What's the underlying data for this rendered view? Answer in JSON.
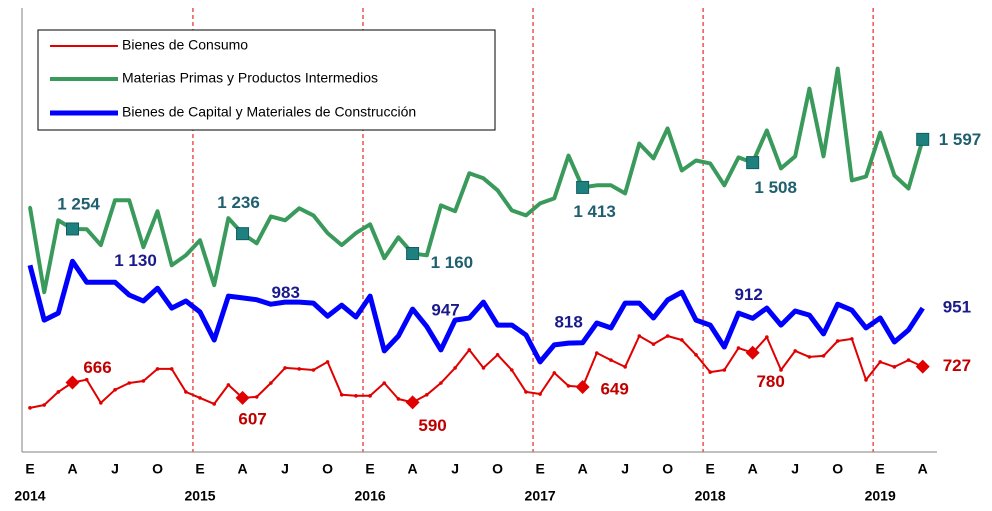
{
  "chart_data": {
    "type": "line",
    "categories": [
      "E",
      null,
      null,
      "A",
      null,
      null,
      "J",
      null,
      null,
      "O",
      null,
      null,
      "E",
      null,
      null,
      "A",
      null,
      null,
      "J",
      null,
      null,
      "O",
      null,
      null,
      "E",
      null,
      null,
      "A",
      null,
      null,
      "J",
      null,
      null,
      "O",
      null,
      null,
      "E",
      null,
      null,
      "A",
      null,
      null,
      "J",
      null,
      null,
      "O",
      null,
      null,
      "E",
      null,
      null,
      "A",
      null,
      null,
      "J",
      null,
      null,
      "O",
      null,
      null,
      "E",
      null,
      null,
      "A"
    ],
    "years": [
      "2014",
      "2015",
      "2016",
      "2017",
      "2018",
      "2019"
    ],
    "ylim": [
      400,
      2100
    ],
    "legend": "upper left",
    "series": [
      {
        "name": "Bienes de Consumo",
        "color": "#e00000",
        "label_color": "#c00000",
        "values": [
          569,
          580,
          630,
          666,
          677,
          588,
          638,
          664,
          672,
          718,
          718,
          630,
          607,
          584,
          657,
          607,
          611,
          664,
          722,
          718,
          714,
          745,
          619,
          615,
          615,
          664,
          603,
          590,
          619,
          664,
          722,
          791,
          722,
          772,
          714,
          630,
          622,
          703,
          653,
          649,
          779,
          752,
          726,
          844,
          813,
          844,
          829,
          772,
          706,
          714,
          798,
          780,
          840,
          714,
          787,
          764,
          768,
          825,
          833,
          676,
          745,
          726,
          752,
          727
        ],
        "value_labels": [
          null,
          null,
          null,
          "666",
          null,
          null,
          null,
          null,
          null,
          null,
          null,
          null,
          null,
          null,
          null,
          "607",
          null,
          null,
          null,
          null,
          null,
          null,
          null,
          null,
          null,
          null,
          null,
          "590",
          null,
          null,
          null,
          null,
          null,
          null,
          null,
          null,
          null,
          null,
          null,
          "649",
          null,
          null,
          null,
          null,
          null,
          null,
          null,
          null,
          null,
          null,
          null,
          "780",
          null,
          null,
          null,
          null,
          null,
          null,
          null,
          null,
          null,
          null,
          null,
          "727"
        ]
      },
      {
        "name": "Materias Primas y Productos Intermedios",
        "color": "#3a9a5b",
        "label_color": "#1f5f6f",
        "values": [
          1337,
          1012,
          1287,
          1254,
          1253,
          1192,
          1364,
          1364,
          1184,
          1322,
          1115,
          1153,
          1211,
          1039,
          1295,
          1236,
          1199,
          1302,
          1287,
          1333,
          1306,
          1238,
          1192,
          1238,
          1272,
          1142,
          1222,
          1160,
          1153,
          1344,
          1322,
          1467,
          1448,
          1402,
          1325,
          1306,
          1352,
          1371,
          1535,
          1413,
          1421,
          1421,
          1390,
          1581,
          1524,
          1639,
          1478,
          1516,
          1505,
          1421,
          1528,
          1508,
          1631,
          1486,
          1532,
          1791,
          1532,
          1868,
          1440,
          1455,
          1623,
          1459,
          1409,
          1597
        ],
        "value_labels": [
          null,
          null,
          null,
          "1 254",
          null,
          null,
          null,
          null,
          null,
          null,
          null,
          null,
          null,
          null,
          null,
          "1 236",
          null,
          null,
          null,
          null,
          null,
          null,
          null,
          null,
          null,
          null,
          null,
          "1 160",
          null,
          null,
          null,
          null,
          null,
          null,
          null,
          null,
          null,
          null,
          null,
          "1 413",
          null,
          null,
          null,
          null,
          null,
          null,
          null,
          null,
          null,
          null,
          null,
          "1 508",
          null,
          null,
          null,
          null,
          null,
          null,
          null,
          null,
          null,
          null,
          null,
          "1 597"
        ]
      },
      {
        "name": "Bienes de Capital y Materiales de Construcción",
        "color": "#0000ff",
        "label_color": "#1a1a8c",
        "values": [
          1115,
          905,
          932,
          1130,
          1050,
          1050,
          1050,
          1001,
          978,
          1027,
          951,
          978,
          936,
          829,
          997,
          990,
          983,
          966,
          974,
          974,
          970,
          920,
          962,
          917,
          997,
          787,
          844,
          947,
          880,
          791,
          905,
          913,
          974,
          886,
          886,
          848,
          745,
          810,
          817,
          818,
          894,
          875,
          970,
          970,
          913,
          982,
          1012,
          905,
          886,
          802,
          932,
          912,
          951,
          886,
          940,
          924,
          852,
          966,
          943,
          875,
          913,
          821,
          867,
          951
        ],
        "value_labels": [
          null,
          null,
          null,
          "1 130",
          null,
          null,
          null,
          null,
          null,
          null,
          null,
          null,
          null,
          null,
          null,
          null,
          "983",
          null,
          null,
          null,
          null,
          null,
          null,
          null,
          null,
          null,
          null,
          "947",
          null,
          null,
          null,
          null,
          null,
          null,
          null,
          null,
          null,
          null,
          null,
          "818",
          null,
          null,
          null,
          null,
          null,
          null,
          null,
          null,
          null,
          null,
          null,
          "912",
          null,
          null,
          null,
          null,
          null,
          null,
          null,
          null,
          null,
          null,
          null,
          "951"
        ]
      }
    ]
  }
}
